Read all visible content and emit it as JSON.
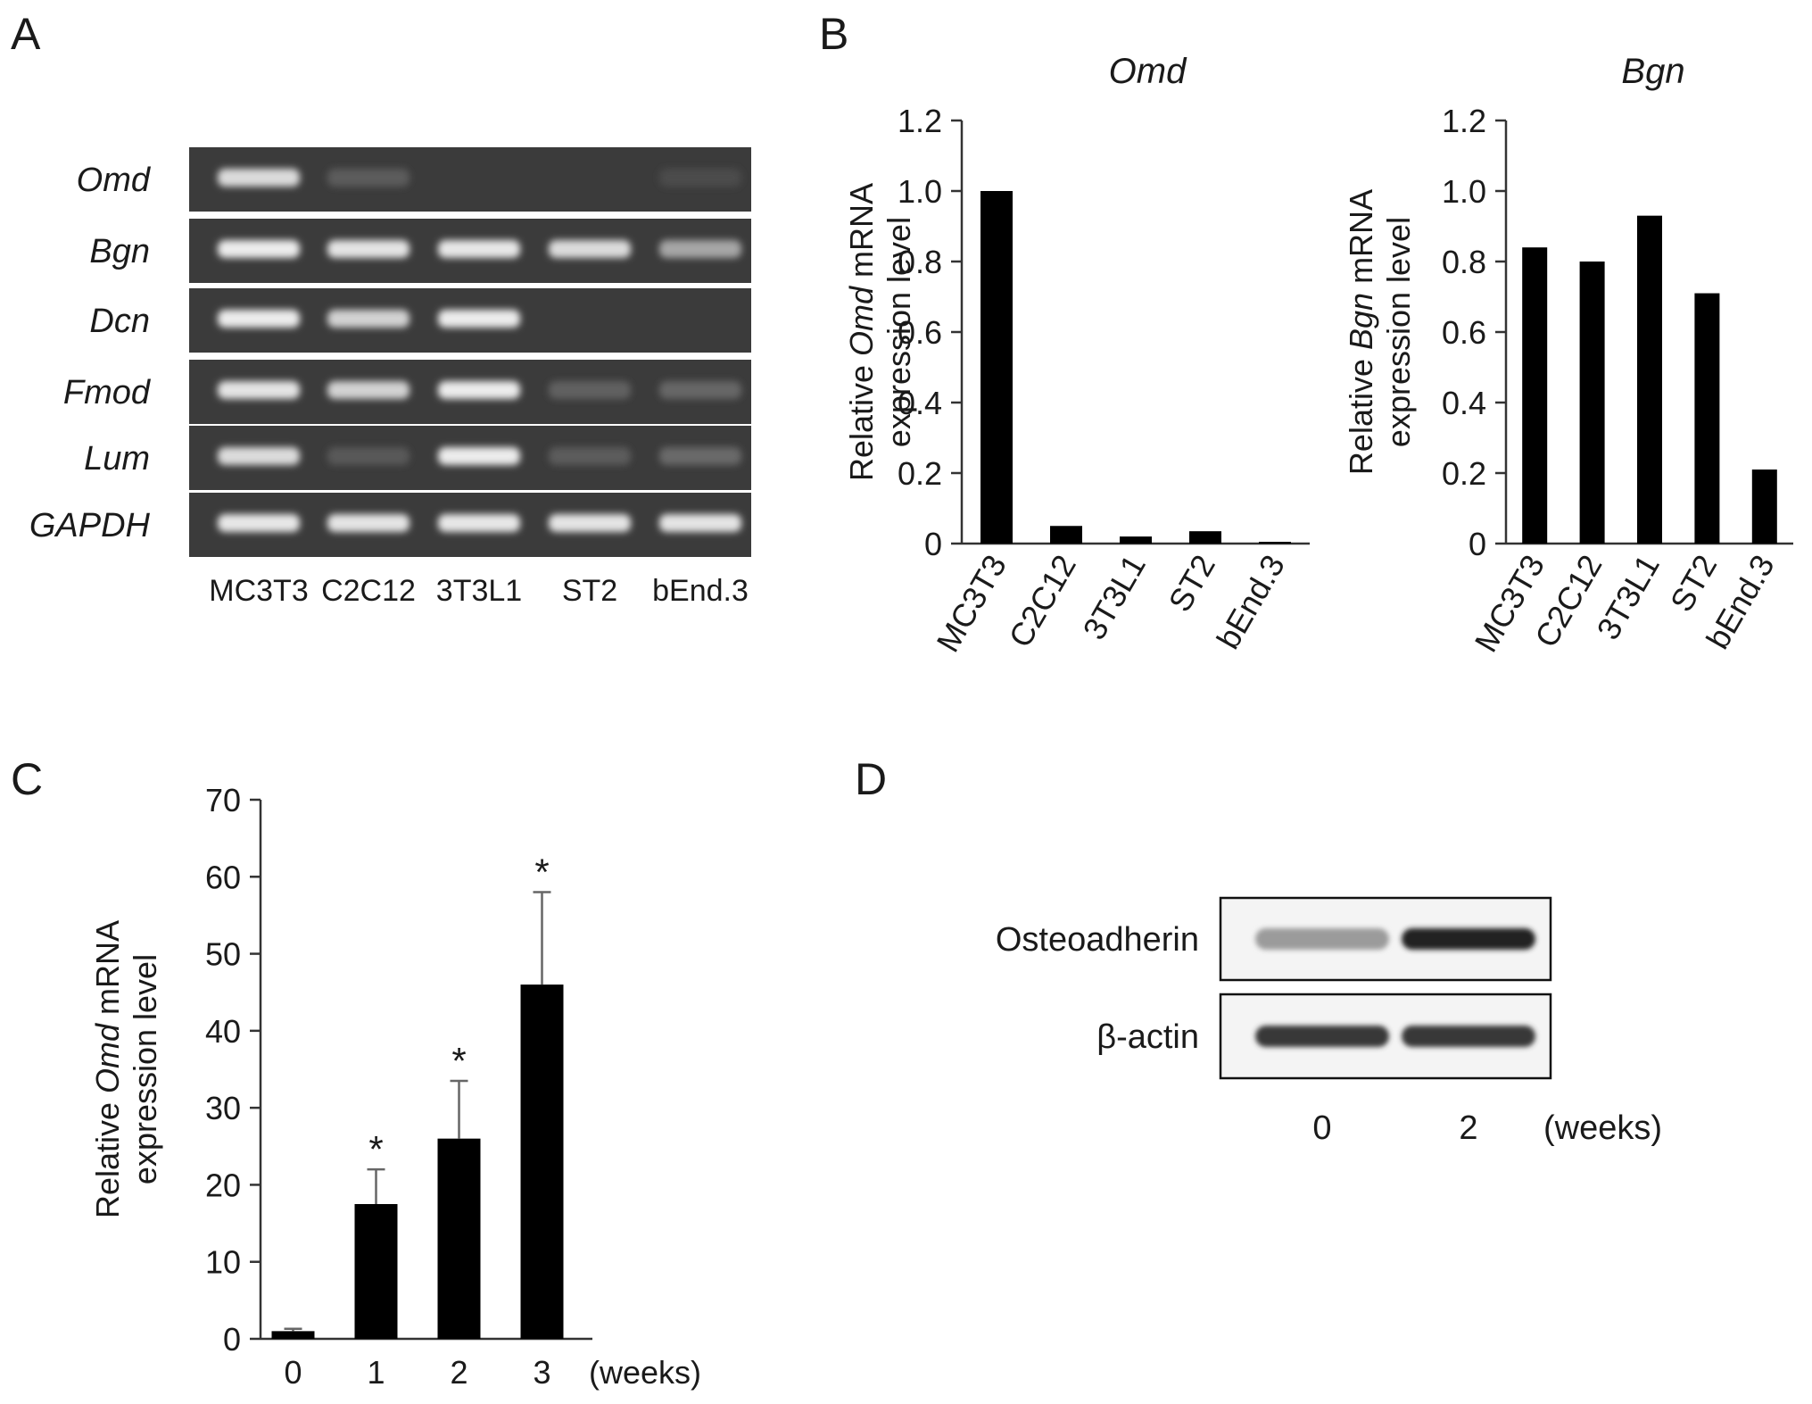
{
  "panel_letters": [
    "A",
    "B",
    "C",
    "D"
  ],
  "gel": {
    "genes": [
      "Omd",
      "Bgn",
      "Dcn",
      "Fmod",
      "Lum",
      "GAPDH"
    ],
    "lanes": [
      "MC3T3",
      "C2C12",
      "3T3L1",
      "ST2",
      "bEnd.3"
    ],
    "band_intensity": [
      [
        0.85,
        0.12,
        0.0,
        0.0,
        0.03
      ],
      [
        0.95,
        0.9,
        0.92,
        0.85,
        0.55
      ],
      [
        0.95,
        0.8,
        0.95,
        0.0,
        0.0
      ],
      [
        0.9,
        0.8,
        0.95,
        0.15,
        0.18
      ],
      [
        0.85,
        0.1,
        0.95,
        0.12,
        0.2
      ],
      [
        0.92,
        0.9,
        0.92,
        0.9,
        0.9
      ]
    ]
  },
  "chart_data": [
    {
      "panel": "B",
      "type": "bar",
      "title": "Omd",
      "ylabel_lines": [
        [
          {
            "text": "Relative ",
            "italic": false
          },
          {
            "text": "Omd",
            "italic": true
          },
          {
            "text": " mRNA",
            "italic": false
          }
        ],
        [
          {
            "text": "expression level",
            "italic": false
          }
        ]
      ],
      "categories": [
        "MC3T3",
        "C2C12",
        "3T3L1",
        "ST2",
        "bEnd.3"
      ],
      "values": [
        1.0,
        0.05,
        0.02,
        0.035,
        0.005
      ],
      "ylim": [
        0,
        1.2
      ],
      "yticks": [
        0,
        0.2,
        0.4,
        0.6,
        0.8,
        1.0,
        1.2
      ],
      "ytick_labels": [
        "0",
        "0.2",
        "0.4",
        "0.6",
        "0.8",
        "1.0",
        "1.2"
      ],
      "grid": false
    },
    {
      "panel": "B",
      "type": "bar",
      "title": "Bgn",
      "ylabel_lines": [
        [
          {
            "text": "Relative ",
            "italic": false
          },
          {
            "text": "Bgn",
            "italic": true
          },
          {
            "text": " mRNA",
            "italic": false
          }
        ],
        [
          {
            "text": "expression level",
            "italic": false
          }
        ]
      ],
      "categories": [
        "MC3T3",
        "C2C12",
        "3T3L1",
        "ST2",
        "bEnd.3"
      ],
      "values": [
        0.84,
        0.8,
        0.93,
        0.71,
        0.21
      ],
      "ylim": [
        0,
        1.2
      ],
      "yticks": [
        0,
        0.2,
        0.4,
        0.6,
        0.8,
        1.0,
        1.2
      ],
      "ytick_labels": [
        "0",
        "0.2",
        "0.4",
        "0.6",
        "0.8",
        "1.0",
        "1.2"
      ],
      "grid": false
    },
    {
      "panel": "C",
      "type": "bar",
      "ylabel_lines": [
        [
          {
            "text": "Relative ",
            "italic": false
          },
          {
            "text": "Omd",
            "italic": true
          },
          {
            "text": " mRNA",
            "italic": false
          }
        ],
        [
          {
            "text": "expression level",
            "italic": false
          }
        ]
      ],
      "categories": [
        "0",
        "1",
        "2",
        "3"
      ],
      "x_unit": "(weeks)",
      "values": [
        1.0,
        17.5,
        26.0,
        46.0
      ],
      "errors": [
        0.3,
        4.5,
        7.5,
        12.0
      ],
      "significance": [
        "",
        "*",
        "*",
        "*"
      ],
      "ylim": [
        0,
        70
      ],
      "yticks": [
        0,
        10,
        20,
        30,
        40,
        50,
        60,
        70
      ],
      "ytick_labels": [
        "0",
        "10",
        "20",
        "30",
        "40",
        "50",
        "60",
        "70"
      ],
      "grid": false
    }
  ],
  "western": {
    "rows": [
      "Osteoadherin",
      "β-actin"
    ],
    "lanes": [
      "0",
      "2"
    ],
    "x_unit": "(weeks)",
    "band_intensity": [
      [
        0.35,
        0.95
      ],
      [
        0.85,
        0.85
      ]
    ]
  }
}
